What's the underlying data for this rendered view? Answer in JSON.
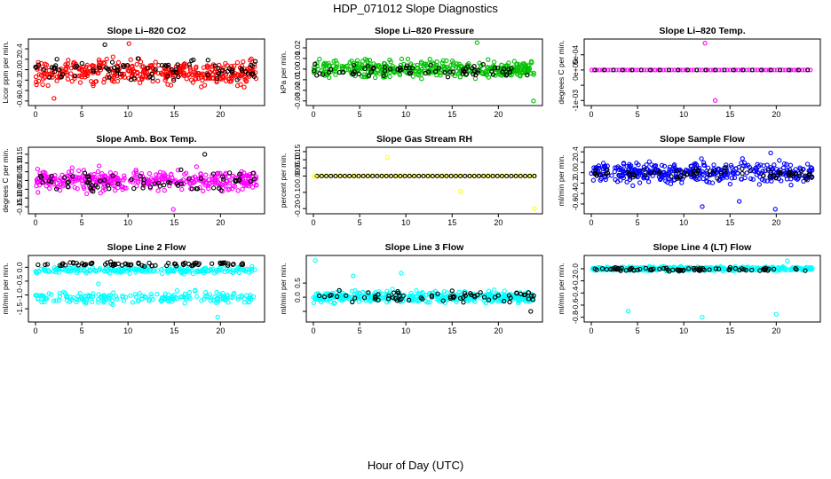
{
  "title": "HDP_071012  Slope Diagnostics",
  "xlabel": "Hour of Day (UTC)",
  "chart_data": [
    {
      "type": "scatter",
      "title": "Slope Li–820 CO2",
      "ylabel": "Licor ppm per min.",
      "xlim": [
        0,
        24
      ],
      "x_ticks": [
        0,
        5,
        10,
        15,
        20
      ],
      "y_ticks": [
        -0.6,
        -0.4,
        -0.2,
        0.0,
        0.2,
        0.4
      ],
      "y_tick_labels": [
        "-0.6",
        "-0.4",
        "-0.2",
        "0.0",
        "0.2",
        "0.4"
      ],
      "ylim": [
        -0.62,
        0.52
      ],
      "base": {
        "color": "#ff0000",
        "n": 380,
        "center": -0.05,
        "spread": 0.35
      },
      "overlay": {
        "color": "#000000",
        "n": 80,
        "center": 0.0,
        "spread": 0.3
      },
      "extras": [
        {
          "x": 10.1,
          "y": 0.5,
          "c": "#ff0000"
        },
        {
          "x": 7.5,
          "y": 0.48,
          "c": "#000000"
        },
        {
          "x": 2.0,
          "y": -0.55,
          "c": "#ff0000"
        }
      ]
    },
    {
      "type": "scatter",
      "title": "Slope Li–820 Pressure",
      "ylabel": "kPa per min.",
      "xlim": [
        0,
        24
      ],
      "x_ticks": [
        0,
        5,
        10,
        15,
        20
      ],
      "y_ticks": [
        -0.03,
        -0.02,
        -0.01,
        0.0,
        0.01,
        0.02
      ],
      "y_tick_labels": [
        "-0.03",
        "-0.02",
        "-0.01",
        "0.00",
        "0.01",
        "0.02"
      ],
      "ylim": [
        -0.031,
        0.025
      ],
      "base": {
        "color": "#00c000",
        "n": 380,
        "center": 0.0,
        "spread": 0.012
      },
      "overlay": {
        "color": "#000000",
        "n": 70,
        "center": -0.001,
        "spread": 0.01
      },
      "extras": [
        {
          "x": 17.7,
          "y": 0.025,
          "c": "#00c000"
        },
        {
          "x": 23.8,
          "y": -0.03,
          "c": "#00c000"
        }
      ]
    },
    {
      "type": "scatter",
      "title": "Slope Li–820 Temp.",
      "ylabel": "degrees C per min.",
      "xlim": [
        0,
        24
      ],
      "x_ticks": [
        0,
        5,
        10,
        15,
        20
      ],
      "y_ticks": [
        -0.001,
        -0.0005,
        0.0,
        0.0005
      ],
      "y_tick_labels": [
        "-1e-03",
        "",
        "0e+00",
        "5e-04"
      ],
      "ylim": [
        -0.00105,
        0.0009
      ],
      "line_at_zero": {
        "color": "#ff00ff",
        "step": 0.3
      },
      "overlay_line": {
        "color": "#000000",
        "step": 1.0
      },
      "extras": [
        {
          "x": 12.3,
          "y": 0.00088,
          "c": "#ff00ff"
        },
        {
          "x": 13.4,
          "y": -0.001,
          "c": "#ff00ff"
        },
        {
          "x": 0.05,
          "y": 0.0,
          "c": "#ff00ff"
        }
      ]
    },
    {
      "type": "scatter",
      "title": "Slope Amb. Box Temp.",
      "ylabel": "degrees C per min.",
      "xlim": [
        0,
        24
      ],
      "x_ticks": [
        0,
        5,
        10,
        15,
        20
      ],
      "y_ticks": [
        -0.15,
        -0.1,
        -0.05,
        0.0,
        0.05,
        0.1,
        0.15
      ],
      "y_tick_labels": [
        "-0.15",
        "-0.10",
        "-0.05",
        "0.00",
        "0.05",
        "0.10",
        "0.15"
      ],
      "ylim": [
        -0.17,
        0.17
      ],
      "base": {
        "color": "#ff00ff",
        "n": 380,
        "center": 0.0,
        "spread": 0.09
      },
      "overlay": {
        "color": "#000000",
        "n": 70,
        "center": 0.0,
        "spread": 0.08
      },
      "extras": [
        {
          "x": 14.9,
          "y": -0.165,
          "c": "#ff00ff"
        },
        {
          "x": 18.3,
          "y": 0.15,
          "c": "#000000"
        }
      ]
    },
    {
      "type": "scatter",
      "title": "Slope Gas Stream RH",
      "ylabel": "percent per min.",
      "xlim": [
        0,
        24
      ],
      "x_ticks": [
        0,
        5,
        10,
        15,
        20
      ],
      "y_ticks": [
        -0.2,
        -0.1,
        0.0,
        0.05,
        0.1,
        0.15
      ],
      "y_tick_labels": [
        "-0.20",
        "-0.10",
        "0.00",
        "0.05",
        "0.10",
        "0.15"
      ],
      "ylim": [
        -0.21,
        0.155
      ],
      "line_at_zero": {
        "color": "#ffff00",
        "step": 0.5
      },
      "overlay_line": {
        "color": "#000000",
        "step": 0.5
      },
      "extras": [
        {
          "x": 8.0,
          "y": 0.115,
          "c": "#ffff00"
        },
        {
          "x": 15.9,
          "y": -0.095,
          "c": "#ffff00"
        },
        {
          "x": 23.9,
          "y": -0.2,
          "c": "#ffff00"
        },
        {
          "x": 0.1,
          "y": -0.002,
          "c": "#ffff00"
        }
      ]
    },
    {
      "type": "scatter",
      "title": "Slope Sample Flow",
      "ylabel": "ml/min per min.",
      "xlim": [
        0,
        24
      ],
      "x_ticks": [
        0,
        5,
        10,
        15,
        20
      ],
      "y_ticks": [
        -0.6,
        -0.4,
        -0.2,
        0.0,
        0.2,
        0.4
      ],
      "y_tick_labels": [
        "-0.6",
        "-0.4",
        "-0.2",
        "0.0",
        "0.2",
        "0.4"
      ],
      "ylim": [
        -0.72,
        0.42
      ],
      "base": {
        "color": "#0000ff",
        "n": 380,
        "center": 0.0,
        "spread": 0.3
      },
      "overlay": {
        "color": "#000000",
        "n": 70,
        "center": -0.02,
        "spread": 0.18
      },
      "extras": [
        {
          "x": 12.0,
          "y": -0.65,
          "c": "#0000ff"
        },
        {
          "x": 19.9,
          "y": -0.7,
          "c": "#0000ff"
        },
        {
          "x": 19.4,
          "y": 0.38,
          "c": "#0000ff"
        },
        {
          "x": 16.0,
          "y": -0.55,
          "c": "#0000ff"
        }
      ]
    },
    {
      "type": "scatter",
      "title": "Slope Line 2 Flow",
      "ylabel": "ml/min per min.",
      "xlim": [
        0,
        24
      ],
      "x_ticks": [
        0,
        5,
        10,
        15,
        20
      ],
      "y_ticks": [
        -1.5,
        -1.0,
        -0.5,
        0.0
      ],
      "y_tick_labels": [
        "-1.5",
        "-1.0",
        "-0.5",
        "0.0"
      ],
      "ylim": [
        -1.85,
        0.3
      ],
      "bands": [
        {
          "color": "#00ffff",
          "n": 220,
          "center": -0.1,
          "spread": 0.18
        },
        {
          "color": "#00ffff",
          "n": 190,
          "center": -1.1,
          "spread": 0.3
        }
      ],
      "overlay": {
        "color": "#000000",
        "n": 75,
        "center": 0.12,
        "spread": 0.12
      },
      "extras": [
        {
          "x": 19.7,
          "y": -1.8,
          "c": "#00ffff"
        },
        {
          "x": 6.8,
          "y": -0.6,
          "c": "#00ffff"
        }
      ]
    },
    {
      "type": "scatter",
      "title": "Slope Line 3 Flow",
      "ylabel": "ml/min per min.",
      "xlim": [
        0,
        24
      ],
      "x_ticks": [
        0,
        5,
        10,
        15,
        20
      ],
      "y_ticks": [
        -0.5,
        0.0,
        0.5
      ],
      "y_tick_labels": [
        "",
        "0.0",
        "0.5"
      ],
      "ylim": [
        -0.75,
        1.35
      ],
      "base": {
        "color": "#00ffff",
        "n": 420,
        "center": 0.0,
        "spread": 0.3
      },
      "overlay": {
        "color": "#000000",
        "n": 70,
        "center": 0.05,
        "spread": 0.3
      },
      "extras": [
        {
          "x": 0.2,
          "y": 1.3,
          "c": "#00ffff"
        },
        {
          "x": 9.5,
          "y": 0.85,
          "c": "#00ffff"
        },
        {
          "x": 4.3,
          "y": 0.75,
          "c": "#00ffff"
        },
        {
          "x": 23.5,
          "y": -0.5,
          "c": "#000000"
        }
      ]
    },
    {
      "type": "scatter",
      "title": "Slope Line 4 (LT) Flow",
      "ylabel": "ml/min per min.",
      "xlim": [
        0,
        24
      ],
      "x_ticks": [
        0,
        5,
        10,
        15,
        20
      ],
      "y_ticks": [
        -0.8,
        -0.6,
        -0.4,
        -0.2,
        0.0
      ],
      "y_tick_labels": [
        "-0.8",
        "-0.6",
        "-0.4",
        "-0.2",
        "0.0"
      ],
      "ylim": [
        -0.82,
        0.16
      ],
      "base": {
        "color": "#00ffff",
        "n": 380,
        "center": 0.0,
        "spread": 0.05
      },
      "overlay": {
        "color": "#000000",
        "n": 75,
        "center": -0.01,
        "spread": 0.05
      },
      "extras": [
        {
          "x": 4.0,
          "y": -0.7,
          "c": "#00ffff"
        },
        {
          "x": 12.0,
          "y": -0.8,
          "c": "#00ffff"
        },
        {
          "x": 20.0,
          "y": -0.75,
          "c": "#00ffff"
        },
        {
          "x": 21.2,
          "y": 0.13,
          "c": "#00ffff"
        }
      ]
    }
  ]
}
